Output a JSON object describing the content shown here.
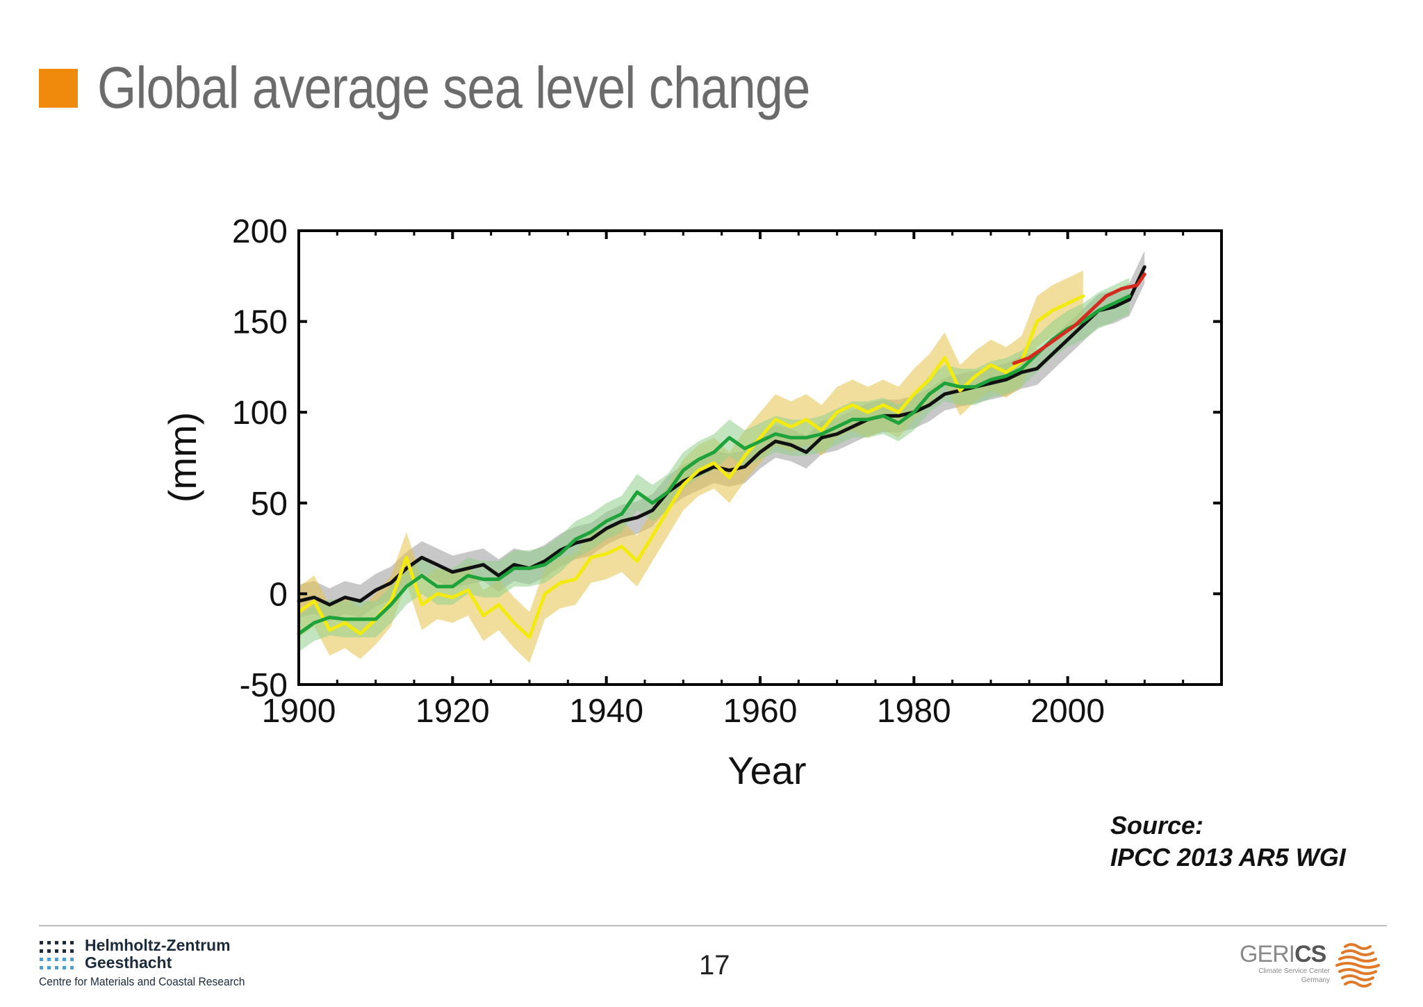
{
  "slide": {
    "title": "Global average sea level change",
    "accent_color": "#f08a0c",
    "source_line1": "Source:",
    "source_line2": "IPCC 2013 AR5 WGI",
    "page_number": "17"
  },
  "footer": {
    "logo_left_line1": "Helmholtz-Zentrum",
    "logo_left_line2": "Geesthacht",
    "logo_left_sub": "Centre for Materials and Coastal Research",
    "logo_right_word_light": "GERI",
    "logo_right_word_bold": "CS",
    "logo_right_sub1": "Climate Service Center",
    "logo_right_sub2": "Germany",
    "logo_right_color": "#e07a2a"
  },
  "chart_data": {
    "type": "line",
    "title": "",
    "xlabel": "Year",
    "ylabel": "(mm)",
    "xlim": [
      1900,
      2020
    ],
    "ylim": [
      -50,
      200
    ],
    "xticks": [
      1900,
      1920,
      1940,
      1960,
      1980,
      2000
    ],
    "yticks": [
      -50,
      0,
      50,
      100,
      150,
      200
    ],
    "grid": false,
    "legend": "none",
    "series": [
      {
        "color": "#111111",
        "band_color": "#9a9a9a",
        "band_halfwidth": 9,
        "x": [
          1900,
          1902,
          1904,
          1906,
          1908,
          1910,
          1912,
          1914,
          1916,
          1918,
          1920,
          1922,
          1924,
          1926,
          1928,
          1930,
          1932,
          1934,
          1936,
          1938,
          1940,
          1942,
          1944,
          1946,
          1948,
          1950,
          1952,
          1954,
          1956,
          1958,
          1960,
          1962,
          1964,
          1966,
          1968,
          1970,
          1972,
          1974,
          1976,
          1978,
          1980,
          1982,
          1984,
          1986,
          1988,
          1990,
          1992,
          1994,
          1996,
          1998,
          2000,
          2002,
          2004,
          2006,
          2008,
          2010
        ],
        "y": [
          -4,
          -2,
          -6,
          -2,
          -4,
          2,
          6,
          14,
          20,
          16,
          12,
          14,
          16,
          10,
          16,
          14,
          18,
          24,
          28,
          30,
          36,
          40,
          42,
          46,
          56,
          62,
          66,
          70,
          68,
          70,
          78,
          84,
          82,
          78,
          86,
          88,
          92,
          96,
          98,
          98,
          100,
          104,
          110,
          112,
          114,
          116,
          118,
          122,
          124,
          132,
          140,
          148,
          156,
          158,
          162,
          180
        ]
      },
      {
        "color": "#f2ea10",
        "band_color": "#e8c24a",
        "band_halfwidth": 14,
        "x": [
          1900,
          1902,
          1904,
          1906,
          1908,
          1910,
          1912,
          1914,
          1916,
          1918,
          1920,
          1922,
          1924,
          1926,
          1928,
          1930,
          1932,
          1934,
          1936,
          1938,
          1940,
          1942,
          1944,
          1946,
          1948,
          1950,
          1952,
          1954,
          1956,
          1958,
          1960,
          1962,
          1964,
          1966,
          1968,
          1970,
          1972,
          1974,
          1976,
          1978,
          1980,
          1982,
          1984,
          1986,
          1988,
          1990,
          1992,
          1994,
          1996,
          1998,
          2000,
          2002
        ],
        "y": [
          -10,
          -4,
          -20,
          -16,
          -22,
          -14,
          -4,
          20,
          -6,
          0,
          -2,
          2,
          -12,
          -6,
          -16,
          -24,
          0,
          6,
          8,
          20,
          22,
          26,
          18,
          32,
          46,
          60,
          68,
          72,
          64,
          76,
          86,
          96,
          92,
          96,
          90,
          100,
          104,
          100,
          104,
          100,
          110,
          118,
          130,
          112,
          120,
          126,
          122,
          128,
          150,
          156,
          160,
          164
        ]
      },
      {
        "color": "#1ea23a",
        "band_color": "#8fd08c",
        "band_halfwidth": 10,
        "x": [
          1900,
          1902,
          1904,
          1906,
          1908,
          1910,
          1912,
          1914,
          1916,
          1918,
          1920,
          1922,
          1924,
          1926,
          1928,
          1930,
          1932,
          1934,
          1936,
          1938,
          1940,
          1942,
          1944,
          1946,
          1948,
          1950,
          1952,
          1954,
          1956,
          1958,
          1960,
          1962,
          1964,
          1966,
          1968,
          1970,
          1972,
          1974,
          1976,
          1978,
          1980,
          1982,
          1984,
          1986,
          1988,
          1990,
          1992,
          1994,
          1996,
          1998,
          2000,
          2002,
          2004,
          2006,
          2008
        ],
        "y": [
          -22,
          -16,
          -13,
          -14,
          -14,
          -14,
          -6,
          4,
          10,
          4,
          4,
          10,
          8,
          8,
          14,
          14,
          16,
          22,
          30,
          34,
          40,
          44,
          56,
          50,
          56,
          68,
          74,
          78,
          86,
          80,
          84,
          88,
          86,
          86,
          88,
          92,
          96,
          96,
          98,
          94,
          100,
          110,
          116,
          114,
          114,
          118,
          120,
          124,
          132,
          140,
          146,
          150,
          156,
          160,
          164
        ]
      },
      {
        "color": "#d42b1e",
        "band_color": "",
        "band_halfwidth": 0,
        "x": [
          1993,
          1995,
          1997,
          1999,
          2001,
          2003,
          2005,
          2007,
          2009,
          2010
        ],
        "y": [
          127,
          130,
          136,
          142,
          148,
          156,
          164,
          168,
          170,
          176
        ]
      }
    ]
  }
}
